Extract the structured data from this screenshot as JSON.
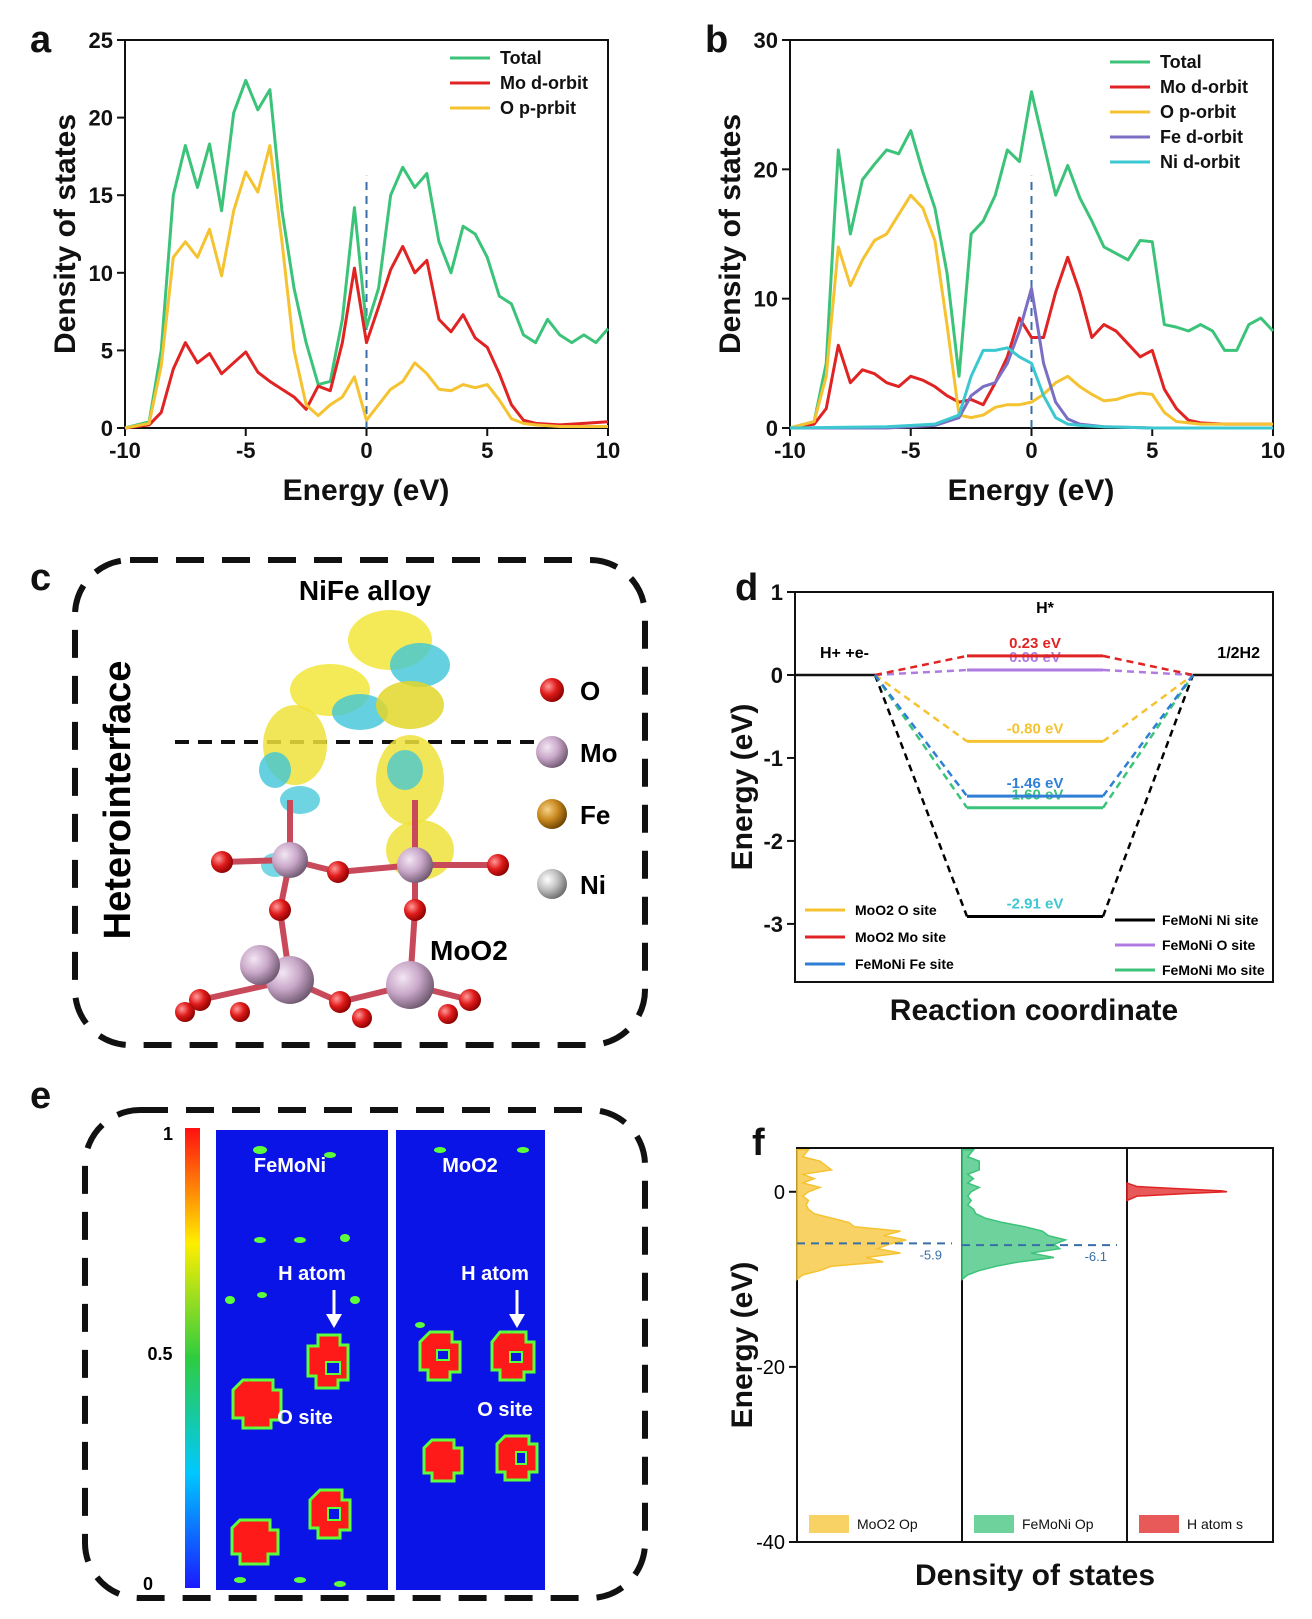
{
  "figure": {
    "panel_letters": {
      "a": "a",
      "b": "b",
      "c": "c",
      "d": "d",
      "e": "e",
      "f": "f"
    }
  },
  "chart_data": [
    {
      "id": "a",
      "type": "line",
      "xlabel": "Energy (eV)",
      "ylabel": "Density of states",
      "xlim": [
        -10,
        10
      ],
      "ylim": [
        0,
        25
      ],
      "xticks": [
        -10,
        -5,
        0,
        5,
        10
      ],
      "yticks": [
        0,
        5,
        10,
        15,
        20,
        25
      ],
      "fermi_level": 0,
      "series": [
        {
          "name": "Total",
          "color": "#3cc37a",
          "x": [
            -10,
            -9,
            -8.5,
            -8,
            -7.5,
            -7,
            -6.5,
            -6,
            -5.5,
            -5,
            -4.5,
            -4,
            -3.5,
            -3,
            -2.5,
            -2,
            -1.5,
            -1,
            -0.5,
            0,
            0.5,
            1,
            1.5,
            2,
            2.5,
            3,
            3.5,
            4,
            4.5,
            5,
            5.5,
            6,
            6.5,
            7,
            7.5,
            8,
            8.5,
            9,
            9.5,
            10
          ],
          "y": [
            0,
            0.4,
            5,
            15,
            18.2,
            15.5,
            18.3,
            14,
            20.3,
            22.4,
            20.5,
            21.8,
            14,
            9,
            5.5,
            2.8,
            3,
            7,
            14.2,
            6.5,
            9,
            15,
            16.8,
            15.5,
            16.4,
            12,
            10,
            13,
            12.5,
            11,
            8.5,
            8,
            6,
            5.5,
            7,
            6,
            5.5,
            6,
            5.5,
            6.4
          ]
        },
        {
          "name": "Mo d-orbit",
          "color": "#e02323",
          "x": [
            -10,
            -9,
            -8.5,
            -8,
            -7.5,
            -7,
            -6.5,
            -6,
            -5.5,
            -5,
            -4.5,
            -4,
            -3.5,
            -3,
            -2.5,
            -2,
            -1.5,
            -1,
            -0.5,
            0,
            0.5,
            1,
            1.5,
            2,
            2.5,
            3,
            3.5,
            4,
            4.5,
            5,
            5.5,
            6,
            6.5,
            7,
            8,
            9,
            10
          ],
          "y": [
            0,
            0.2,
            1,
            3.8,
            5.5,
            4.2,
            4.8,
            3.5,
            4.2,
            4.9,
            3.6,
            3,
            2.5,
            2,
            1.2,
            2.7,
            2.4,
            5.5,
            10.3,
            5.5,
            7.8,
            10.2,
            11.7,
            10,
            10.8,
            7,
            6.2,
            7.3,
            5.8,
            5.2,
            3.5,
            1.5,
            0.5,
            0.3,
            0.2,
            0.3,
            0.4
          ]
        },
        {
          "name": "O p-prbit",
          "color": "#f5c331",
          "x": [
            -10,
            -9,
            -8.5,
            -8,
            -7.5,
            -7,
            -6.5,
            -6,
            -5.5,
            -5,
            -4.5,
            -4,
            -3.5,
            -3,
            -2.5,
            -2,
            -1.5,
            -1,
            -0.5,
            0,
            0.5,
            1,
            1.5,
            2,
            2.5,
            3,
            3.5,
            4,
            4.5,
            5,
            5.5,
            6,
            6.5,
            7,
            8,
            9,
            10
          ],
          "y": [
            0,
            0.3,
            4,
            11,
            12,
            11,
            12.8,
            9.8,
            14,
            16.5,
            15.2,
            18.2,
            12,
            5,
            1.5,
            0.8,
            1.5,
            2,
            3.3,
            0.5,
            1.5,
            2.5,
            3,
            4.2,
            3.5,
            2.5,
            2.4,
            2.8,
            2.6,
            2.8,
            1.8,
            0.6,
            0.3,
            0.2,
            0.1,
            0.1,
            0.1
          ]
        }
      ]
    },
    {
      "id": "b",
      "type": "line",
      "xlabel": "Energy (eV)",
      "ylabel": "Density of states",
      "xlim": [
        -10,
        10
      ],
      "ylim": [
        0,
        30
      ],
      "xticks": [
        -10,
        -5,
        0,
        5,
        10
      ],
      "yticks": [
        0,
        10,
        20,
        30
      ],
      "fermi_level": 0,
      "series": [
        {
          "name": "Total",
          "color": "#3cc37a",
          "x": [
            -10,
            -9,
            -8.5,
            -8,
            -7.5,
            -7,
            -6.5,
            -6,
            -5.5,
            -5,
            -4.5,
            -4,
            -3.5,
            -3,
            -2.5,
            -2,
            -1.5,
            -1,
            -0.5,
            0,
            0.5,
            1,
            1.5,
            2,
            2.5,
            3,
            3.5,
            4,
            4.5,
            5,
            5.5,
            6,
            6.5,
            7,
            7.5,
            8,
            8.5,
            9,
            9.5,
            10
          ],
          "y": [
            0,
            0.5,
            5,
            21.5,
            15,
            19.2,
            20.4,
            21.5,
            21.2,
            23,
            19.8,
            17,
            12,
            4,
            15,
            16,
            18,
            21.5,
            20.6,
            26,
            22,
            18,
            20.3,
            17.8,
            16,
            14,
            13.5,
            13,
            14.5,
            14.4,
            8,
            7.8,
            7.5,
            8,
            7.5,
            6,
            6,
            8,
            8.5,
            7.5
          ]
        },
        {
          "name": "Mo d-orbit",
          "color": "#e02323",
          "x": [
            -10,
            -9,
            -8.5,
            -8,
            -7.5,
            -7,
            -6.5,
            -6,
            -5.5,
            -5,
            -4.5,
            -4,
            -3.5,
            -3,
            -2.5,
            -2,
            -1.5,
            -1,
            -0.5,
            0,
            0.5,
            1,
            1.5,
            2,
            2.5,
            3,
            3.5,
            4,
            4.5,
            5,
            5.5,
            6,
            6.5,
            7,
            8,
            9,
            10
          ],
          "y": [
            0,
            0.3,
            1.5,
            6.4,
            3.5,
            4.5,
            4.2,
            3.5,
            3.2,
            4,
            3.7,
            3.2,
            2.5,
            2,
            2.2,
            1.8,
            3.5,
            5.5,
            8.5,
            7,
            7,
            10.5,
            13.2,
            10.5,
            7,
            8,
            7.5,
            6.5,
            5.5,
            6,
            3,
            1.5,
            0.6,
            0.4,
            0.3,
            0.3,
            0.3
          ]
        },
        {
          "name": "O p-orbit",
          "color": "#f5c331",
          "x": [
            -10,
            -9,
            -8.5,
            -8,
            -7.5,
            -7,
            -6.5,
            -6,
            -5.5,
            -5,
            -4.5,
            -4,
            -3.5,
            -3,
            -2.5,
            -2,
            -1.5,
            -1,
            -0.5,
            0,
            0.5,
            1,
            1.5,
            2,
            2.5,
            3,
            3.5,
            4,
            4.5,
            5,
            5.5,
            6,
            7,
            8,
            9,
            10
          ],
          "y": [
            0,
            0.5,
            4,
            14,
            11,
            13,
            14.5,
            15,
            16.5,
            18,
            17,
            14.5,
            8,
            1,
            0.8,
            1,
            1.6,
            1.8,
            1.8,
            2,
            2.6,
            3.5,
            4,
            3.2,
            2.6,
            2.1,
            2.2,
            2.5,
            2.7,
            2.6,
            1.2,
            0.5,
            0.3,
            0.3,
            0.3,
            0.3
          ]
        },
        {
          "name": "Fe d-orbit",
          "color": "#7a6fc4",
          "x": [
            -10,
            -6,
            -4,
            -3,
            -2.5,
            -2,
            -1.5,
            -1,
            -0.5,
            0,
            0.5,
            1,
            1.5,
            2,
            3,
            5,
            10
          ],
          "y": [
            0,
            0,
            0.2,
            0.8,
            2.5,
            3.2,
            3.5,
            5,
            7.5,
            10.8,
            5,
            2,
            0.7,
            0.3,
            0.1,
            0,
            0
          ]
        },
        {
          "name": "Ni d-orbit",
          "color": "#3cc8d1",
          "x": [
            -10,
            -6,
            -4,
            -3,
            -2.5,
            -2,
            -1.5,
            -1,
            -0.5,
            0,
            0.5,
            1,
            1.5,
            2,
            3,
            5,
            10
          ],
          "y": [
            0,
            0.1,
            0.3,
            1,
            4,
            6,
            6,
            6.2,
            5.5,
            5,
            2.5,
            0.8,
            0.3,
            0.2,
            0.1,
            0,
            0
          ]
        }
      ]
    },
    {
      "id": "d",
      "type": "line",
      "title": "H*",
      "xlabel": "Reaction coordinate",
      "ylabel": "Energy (eV)",
      "ylim": [
        -3.7,
        1
      ],
      "yticks": [
        1,
        0,
        -1,
        -2,
        -3
      ],
      "start_label": "H+ +e-",
      "end_label": "1/2H2",
      "series": [
        {
          "name": "FeMoNi Ni site",
          "color": "#000000",
          "value": -2.91,
          "value_label": "-2.91 eV",
          "label_color": "#3cc8d1"
        },
        {
          "name": "FeMoNi O site",
          "color": "#b07be0",
          "value": 0.06,
          "value_label": "0.06 eV",
          "label_color": "#b07be0"
        },
        {
          "name": "FeMoNi Mo site",
          "color": "#3cc37a",
          "value": -1.6,
          "value_label": "-1.60 eV",
          "label_color": "#3cc37a"
        },
        {
          "name": "MoO2 O site",
          "color": "#f5c331",
          "value": -0.8,
          "value_label": "-0.80 eV",
          "label_color": "#f5c331"
        },
        {
          "name": "MoO2 Mo site",
          "color": "#e02323",
          "value": 0.23,
          "value_label": "0.23 eV",
          "label_color": "#e02323"
        },
        {
          "name": "FeMoNi Fe site",
          "color": "#2f7fd6",
          "value": -1.46,
          "value_label": "-1.46 eV",
          "label_color": "#2f7fd6"
        }
      ]
    },
    {
      "id": "f",
      "type": "area",
      "xlabel": "Density of states",
      "ylabel": "Energy (eV)",
      "ylim": [
        -40,
        5
      ],
      "yticks": [
        0,
        -20,
        -40
      ],
      "series": [
        {
          "name": "MoO2 Op",
          "color": "#f5c331",
          "band_center": -5.9,
          "band_center_label": "-5.9",
          "y": [
            4.8,
            4,
            3.5,
            2.5,
            2,
            1.5,
            1,
            0.5,
            0,
            -0.5,
            -1,
            -1.5,
            -2,
            -2.5,
            -3,
            -3.5,
            -4,
            -4.5,
            -5,
            -5.5,
            -6,
            -6.5,
            -7,
            -7.5,
            -8,
            -8.5,
            -9,
            -9.5,
            -10
          ],
          "dos": [
            0.1,
            0.05,
            0.2,
            0.3,
            0.05,
            0.15,
            0.05,
            0.2,
            0.1,
            0.05,
            0.1,
            0.08,
            0.1,
            0.15,
            0.3,
            0.45,
            0.5,
            0.9,
            0.75,
            0.95,
            0.8,
            0.7,
            0.9,
            0.6,
            0.75,
            0.3,
            0.2,
            0.05,
            0
          ]
        },
        {
          "name": "FeMoNi Op",
          "color": "#3cc37a",
          "band_center": -6.1,
          "band_center_label": "-6.1",
          "y": [
            4.8,
            4,
            3.5,
            2.5,
            2,
            1.5,
            1,
            0.5,
            0,
            -0.5,
            -1,
            -1.5,
            -2,
            -2.5,
            -3,
            -3.5,
            -4,
            -4.5,
            -5,
            -5.5,
            -6,
            -6.5,
            -7,
            -7.5,
            -8,
            -8.5,
            -9,
            -9.5,
            -10
          ],
          "dos": [
            0.1,
            0.05,
            0.15,
            0.15,
            0.05,
            0.1,
            0.05,
            0.15,
            0.08,
            0.05,
            0.08,
            0.05,
            0.1,
            0.12,
            0.2,
            0.35,
            0.55,
            0.7,
            0.75,
            0.9,
            0.8,
            0.85,
            0.6,
            0.8,
            0.5,
            0.3,
            0.15,
            0.05,
            0
          ]
        },
        {
          "name": "H atom s",
          "color": "#e02323",
          "y": [
            1,
            0.6,
            0.3,
            0.1,
            0,
            -0.2,
            -0.5,
            -1
          ],
          "dos": [
            0,
            0.1,
            0.6,
            0.95,
            1,
            0.6,
            0.1,
            0
          ]
        }
      ]
    }
  ],
  "panel_c": {
    "title": "NiFe alloy",
    "side_label": "Heterointerface",
    "substrate_label": "MoO2",
    "legend": [
      {
        "label": "O",
        "color": "#e01b1b"
      },
      {
        "label": "Mo",
        "color": "#c9a8c9"
      },
      {
        "label": "Fe",
        "color": "#c98a20"
      },
      {
        "label": "Ni",
        "color": "#c0c0c0"
      }
    ]
  },
  "panel_e": {
    "colorbar_ticks": [
      "1",
      "0.5",
      "0"
    ],
    "map1_title": "FeMoNi",
    "map2_title": "MoO2",
    "map1_arrow_label": "H atom",
    "map2_arrow_label": "H atom",
    "map1_site_label": "O site",
    "map2_site_label": "O site"
  }
}
